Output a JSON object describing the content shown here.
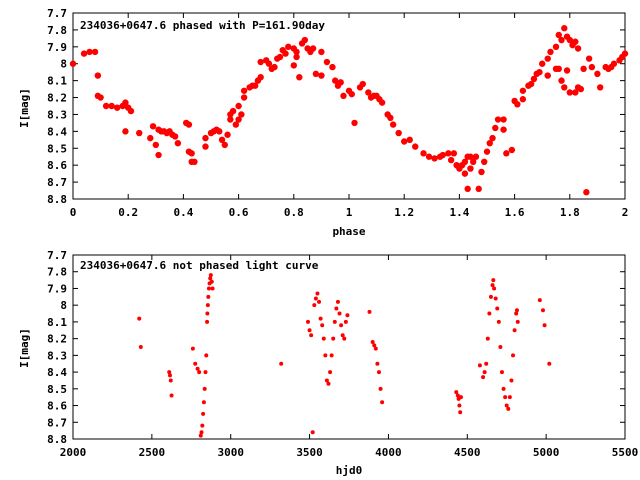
{
  "chart_data": [
    {
      "type": "scatter",
      "title": "234036+0647.6 phased with P=161.90day",
      "xlabel": "phase",
      "ylabel": "I[mag]",
      "xlim": [
        0,
        2
      ],
      "ylim": [
        8.8,
        7.7
      ],
      "y_inverted": true,
      "grid": false,
      "marker_color": "#ff0000",
      "xticks": [
        0,
        0.2,
        0.4,
        0.6,
        0.8,
        1,
        1.2,
        1.4,
        1.6,
        1.8,
        2
      ],
      "xtick_labels": [
        "0",
        "0.2",
        "0.4",
        "0.6",
        "0.8",
        "1",
        "1.2",
        "1.4",
        "1.6",
        "1.8",
        "2"
      ],
      "yticks": [
        7.7,
        7.8,
        7.9,
        8,
        8.1,
        8.2,
        8.3,
        8.4,
        8.5,
        8.6,
        8.7,
        8.8
      ],
      "ytick_labels": [
        "7.7",
        "7.8",
        "7.9",
        "8",
        "8.1",
        "8.2",
        "8.3",
        "8.4",
        "8.5",
        "8.6",
        "8.7",
        "8.8"
      ],
      "points": [
        [
          0.0,
          8.0
        ],
        [
          0.04,
          7.94
        ],
        [
          0.06,
          7.93
        ],
        [
          0.08,
          7.93
        ],
        [
          0.09,
          8.07
        ],
        [
          0.1,
          8.2
        ],
        [
          0.09,
          8.19
        ],
        [
          0.12,
          8.25
        ],
        [
          0.14,
          8.25
        ],
        [
          0.16,
          8.26
        ],
        [
          0.18,
          8.25
        ],
        [
          0.19,
          8.23
        ],
        [
          0.2,
          8.26
        ],
        [
          0.21,
          8.28
        ],
        [
          0.19,
          8.4
        ],
        [
          0.24,
          8.41
        ],
        [
          0.28,
          8.44
        ],
        [
          0.29,
          8.37
        ],
        [
          0.31,
          8.39
        ],
        [
          0.32,
          8.4
        ],
        [
          0.33,
          8.4
        ],
        [
          0.34,
          8.41
        ],
        [
          0.35,
          8.4
        ],
        [
          0.36,
          8.42
        ],
        [
          0.37,
          8.43
        ],
        [
          0.38,
          8.47
        ],
        [
          0.3,
          8.48
        ],
        [
          0.31,
          8.54
        ],
        [
          0.41,
          8.35
        ],
        [
          0.42,
          8.36
        ],
        [
          0.42,
          8.52
        ],
        [
          0.43,
          8.58
        ],
        [
          0.44,
          8.58
        ],
        [
          0.43,
          8.53
        ],
        [
          0.48,
          8.44
        ],
        [
          0.48,
          8.49
        ],
        [
          0.5,
          8.41
        ],
        [
          0.51,
          8.4
        ],
        [
          0.52,
          8.39
        ],
        [
          0.53,
          8.4
        ],
        [
          0.54,
          8.45
        ],
        [
          0.55,
          8.48
        ],
        [
          0.56,
          8.42
        ],
        [
          0.57,
          8.33
        ],
        [
          0.57,
          8.3
        ],
        [
          0.58,
          8.28
        ],
        [
          0.59,
          8.36
        ],
        [
          0.6,
          8.33
        ],
        [
          0.61,
          8.3
        ],
        [
          0.6,
          8.25
        ],
        [
          0.62,
          8.2
        ],
        [
          0.62,
          8.16
        ],
        [
          0.64,
          8.14
        ],
        [
          0.65,
          8.13
        ],
        [
          0.66,
          8.13
        ],
        [
          0.67,
          8.1
        ],
        [
          0.68,
          8.08
        ],
        [
          0.68,
          7.99
        ],
        [
          0.7,
          7.98
        ],
        [
          0.71,
          8.0
        ],
        [
          0.72,
          8.03
        ],
        [
          0.73,
          8.02
        ],
        [
          0.74,
          7.97
        ],
        [
          0.75,
          7.96
        ],
        [
          0.76,
          7.92
        ],
        [
          0.77,
          7.94
        ],
        [
          0.78,
          7.9
        ],
        [
          0.8,
          7.91
        ],
        [
          0.81,
          7.93
        ],
        [
          0.81,
          7.96
        ],
        [
          0.8,
          8.01
        ],
        [
          0.82,
          8.08
        ],
        [
          0.83,
          7.88
        ],
        [
          0.84,
          7.86
        ],
        [
          0.85,
          7.91
        ],
        [
          0.86,
          7.93
        ],
        [
          0.87,
          7.91
        ],
        [
          0.88,
          8.06
        ],
        [
          0.9,
          8.07
        ],
        [
          0.9,
          7.93
        ],
        [
          0.92,
          7.99
        ],
        [
          0.94,
          8.02
        ],
        [
          0.95,
          8.1
        ],
        [
          0.96,
          8.13
        ],
        [
          0.97,
          8.11
        ],
        [
          0.98,
          8.19
        ],
        [
          1.0,
          8.16
        ],
        [
          1.01,
          8.18
        ],
        [
          1.02,
          8.35
        ],
        [
          1.04,
          8.14
        ],
        [
          1.05,
          8.12
        ],
        [
          1.07,
          8.17
        ],
        [
          1.08,
          8.2
        ],
        [
          1.09,
          8.19
        ],
        [
          1.1,
          8.19
        ],
        [
          1.11,
          8.21
        ],
        [
          1.12,
          8.23
        ],
        [
          1.14,
          8.3
        ],
        [
          1.15,
          8.32
        ],
        [
          1.16,
          8.36
        ],
        [
          1.18,
          8.41
        ],
        [
          1.2,
          8.46
        ],
        [
          1.22,
          8.45
        ],
        [
          1.24,
          8.49
        ],
        [
          1.27,
          8.53
        ],
        [
          1.29,
          8.55
        ],
        [
          1.31,
          8.56
        ],
        [
          1.33,
          8.55
        ],
        [
          1.34,
          8.54
        ],
        [
          1.36,
          8.53
        ],
        [
          1.37,
          8.57
        ],
        [
          1.38,
          8.53
        ],
        [
          1.39,
          8.6
        ],
        [
          1.4,
          8.62
        ],
        [
          1.41,
          8.6
        ],
        [
          1.42,
          8.58
        ],
        [
          1.43,
          8.55
        ],
        [
          1.44,
          8.55
        ],
        [
          1.45,
          8.58
        ],
        [
          1.42,
          8.65
        ],
        [
          1.43,
          8.74
        ],
        [
          1.44,
          8.62
        ],
        [
          1.46,
          8.55
        ],
        [
          1.47,
          8.74
        ],
        [
          1.48,
          8.64
        ],
        [
          1.49,
          8.58
        ],
        [
          1.5,
          8.52
        ],
        [
          1.51,
          8.47
        ],
        [
          1.52,
          8.44
        ],
        [
          1.53,
          8.38
        ],
        [
          1.54,
          8.33
        ],
        [
          1.56,
          8.33
        ],
        [
          1.56,
          8.39
        ],
        [
          1.57,
          8.53
        ],
        [
          1.59,
          8.51
        ],
        [
          1.6,
          8.22
        ],
        [
          1.61,
          8.24
        ],
        [
          1.63,
          8.21
        ],
        [
          1.63,
          8.16
        ],
        [
          1.65,
          8.13
        ],
        [
          1.66,
          8.12
        ],
        [
          1.67,
          8.09
        ],
        [
          1.68,
          8.06
        ],
        [
          1.69,
          8.05
        ],
        [
          1.7,
          8.0
        ],
        [
          1.72,
          8.07
        ],
        [
          1.72,
          7.97
        ],
        [
          1.73,
          7.93
        ],
        [
          1.75,
          7.9
        ],
        [
          1.76,
          7.83
        ],
        [
          1.77,
          7.86
        ],
        [
          1.78,
          7.79
        ],
        [
          1.79,
          7.84
        ],
        [
          1.8,
          7.86
        ],
        [
          1.81,
          7.89
        ],
        [
          1.82,
          7.87
        ],
        [
          1.83,
          7.91
        ],
        [
          1.75,
          8.03
        ],
        [
          1.76,
          8.03
        ],
        [
          1.77,
          8.1
        ],
        [
          1.78,
          8.14
        ],
        [
          1.79,
          8.04
        ],
        [
          1.8,
          8.17
        ],
        [
          1.82,
          8.17
        ],
        [
          1.83,
          8.14
        ],
        [
          1.84,
          8.15
        ],
        [
          1.85,
          8.03
        ],
        [
          1.86,
          8.76
        ],
        [
          1.87,
          7.97
        ],
        [
          1.88,
          8.02
        ],
        [
          1.9,
          8.06
        ],
        [
          1.91,
          8.14
        ],
        [
          1.93,
          8.02
        ],
        [
          1.94,
          8.03
        ],
        [
          1.95,
          8.02
        ],
        [
          1.96,
          8.0
        ],
        [
          1.98,
          7.98
        ],
        [
          1.99,
          7.96
        ],
        [
          2.0,
          7.94
        ]
      ]
    },
    {
      "type": "scatter",
      "title": "234036+0647.6 not phased light curve",
      "xlabel": "hjd0",
      "ylabel": "I[mag]",
      "xlim": [
        2000,
        5500
      ],
      "ylim": [
        8.8,
        7.7
      ],
      "y_inverted": true,
      "grid": false,
      "marker_color": "#ff0000",
      "xticks": [
        2000,
        2500,
        3000,
        3500,
        4000,
        4500,
        5000,
        5500
      ],
      "xtick_labels": [
        "2000",
        "2500",
        "3000",
        "3500",
        "4000",
        "4500",
        "5000",
        "5500"
      ],
      "yticks": [
        7.7,
        7.8,
        7.9,
        8,
        8.1,
        8.2,
        8.3,
        8.4,
        8.5,
        8.6,
        8.7,
        8.8
      ],
      "ytick_labels": [
        "7.7",
        "7.8",
        "7.9",
        "8",
        "8.1",
        "8.2",
        "8.3",
        "8.4",
        "8.5",
        "8.6",
        "8.7",
        "8.8"
      ],
      "points": [
        [
          2420,
          8.08
        ],
        [
          2430,
          8.25
        ],
        [
          2610,
          8.4
        ],
        [
          2615,
          8.42
        ],
        [
          2620,
          8.45
        ],
        [
          2625,
          8.54
        ],
        [
          2760,
          8.26
        ],
        [
          2775,
          8.35
        ],
        [
          2790,
          8.38
        ],
        [
          2800,
          8.4
        ],
        [
          2810,
          8.78
        ],
        [
          2815,
          8.76
        ],
        [
          2820,
          8.72
        ],
        [
          2825,
          8.65
        ],
        [
          2830,
          8.58
        ],
        [
          2835,
          8.5
        ],
        [
          2840,
          8.4
        ],
        [
          2845,
          8.3
        ],
        [
          2850,
          8.1
        ],
        [
          2852,
          8.05
        ],
        [
          2855,
          8.0
        ],
        [
          2858,
          7.95
        ],
        [
          2862,
          7.9
        ],
        [
          2866,
          7.87
        ],
        [
          2870,
          7.84
        ],
        [
          2874,
          7.82
        ],
        [
          2880,
          7.86
        ],
        [
          2885,
          7.9
        ],
        [
          3320,
          8.35
        ],
        [
          3490,
          8.1
        ],
        [
          3500,
          8.15
        ],
        [
          3510,
          8.18
        ],
        [
          3520,
          8.76
        ],
        [
          3530,
          8.0
        ],
        [
          3540,
          7.96
        ],
        [
          3550,
          7.93
        ],
        [
          3560,
          7.98
        ],
        [
          3570,
          8.08
        ],
        [
          3580,
          8.12
        ],
        [
          3590,
          8.2
        ],
        [
          3600,
          8.3
        ],
        [
          3610,
          8.45
        ],
        [
          3620,
          8.47
        ],
        [
          3630,
          8.4
        ],
        [
          3640,
          8.3
        ],
        [
          3650,
          8.2
        ],
        [
          3660,
          8.1
        ],
        [
          3670,
          8.02
        ],
        [
          3680,
          7.98
        ],
        [
          3690,
          8.05
        ],
        [
          3700,
          8.12
        ],
        [
          3710,
          8.18
        ],
        [
          3720,
          8.2
        ],
        [
          3730,
          8.1
        ],
        [
          3740,
          8.06
        ],
        [
          3880,
          8.04
        ],
        [
          3900,
          8.22
        ],
        [
          3910,
          8.24
        ],
        [
          3920,
          8.26
        ],
        [
          3930,
          8.35
        ],
        [
          3940,
          8.4
        ],
        [
          3950,
          8.5
        ],
        [
          3960,
          8.58
        ],
        [
          4430,
          8.52
        ],
        [
          4440,
          8.54
        ],
        [
          4445,
          8.56
        ],
        [
          4450,
          8.6
        ],
        [
          4455,
          8.64
        ],
        [
          4460,
          8.55
        ],
        [
          4580,
          8.36
        ],
        [
          4600,
          8.43
        ],
        [
          4610,
          8.4
        ],
        [
          4620,
          8.35
        ],
        [
          4630,
          8.2
        ],
        [
          4640,
          8.05
        ],
        [
          4650,
          7.95
        ],
        [
          4660,
          7.88
        ],
        [
          4665,
          7.85
        ],
        [
          4670,
          7.9
        ],
        [
          4680,
          7.96
        ],
        [
          4690,
          8.02
        ],
        [
          4700,
          8.1
        ],
        [
          4710,
          8.25
        ],
        [
          4720,
          8.4
        ],
        [
          4730,
          8.5
        ],
        [
          4740,
          8.55
        ],
        [
          4750,
          8.6
        ],
        [
          4760,
          8.62
        ],
        [
          4770,
          8.55
        ],
        [
          4780,
          8.45
        ],
        [
          4790,
          8.3
        ],
        [
          4800,
          8.15
        ],
        [
          4810,
          8.05
        ],
        [
          4815,
          8.03
        ],
        [
          4820,
          8.1
        ],
        [
          4960,
          7.97
        ],
        [
          4980,
          8.03
        ],
        [
          4990,
          8.12
        ],
        [
          5020,
          8.35
        ]
      ]
    }
  ]
}
